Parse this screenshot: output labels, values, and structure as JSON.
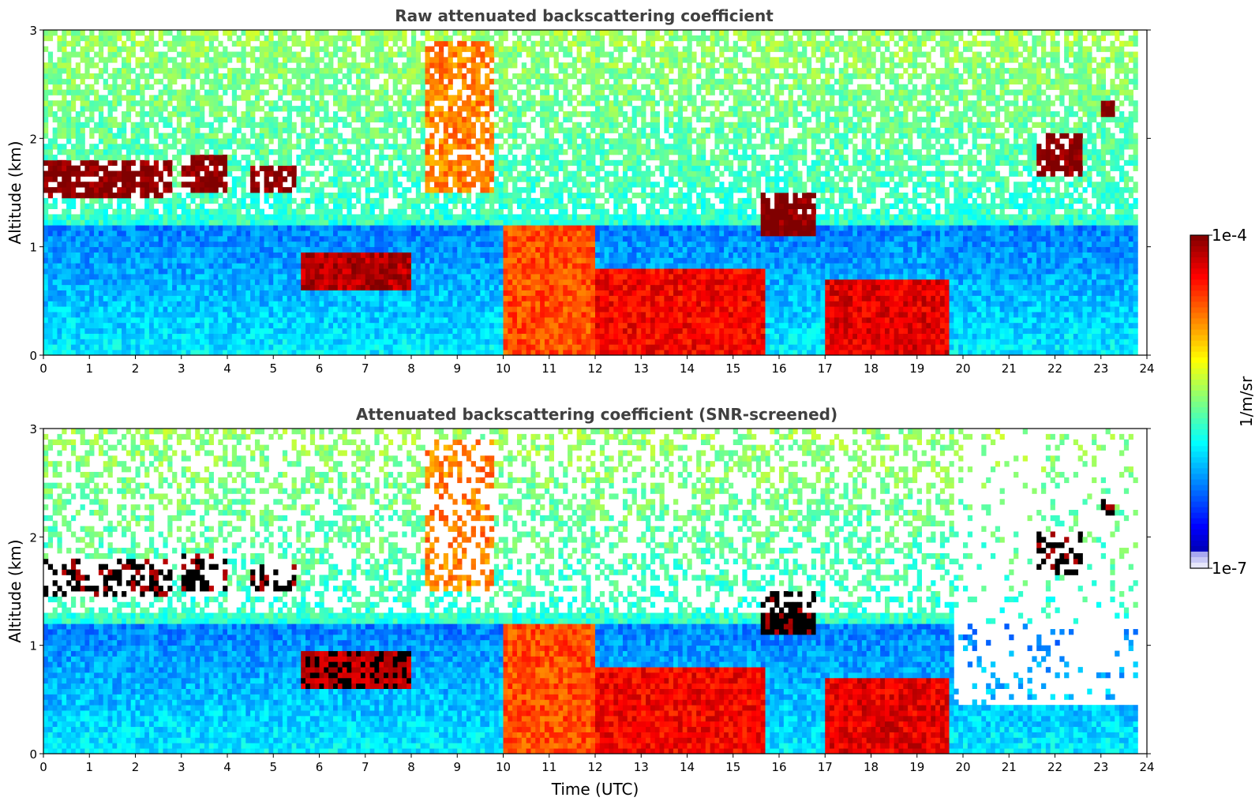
{
  "chart_data": [
    {
      "type": "heatmap",
      "title": "Raw attenuated backscattering coefficient",
      "ylabel": "Altitude (km)",
      "xlabel": "",
      "xlim": [
        0,
        24
      ],
      "ylim": [
        0,
        3
      ],
      "x_ticks": [
        "0",
        "1",
        "2",
        "3",
        "4",
        "5",
        "6",
        "7",
        "8",
        "9",
        "10",
        "11",
        "12",
        "13",
        "14",
        "15",
        "16",
        "17",
        "18",
        "19",
        "20",
        "21",
        "22",
        "23",
        "24"
      ],
      "y_ticks": [
        "0",
        "1",
        "2",
        "3"
      ],
      "screened": false,
      "cloud_layers": [
        {
          "x": [
            0.0,
            2.8
          ],
          "y": [
            1.45,
            1.8
          ],
          "intensity": 1.0
        },
        {
          "x": [
            3.0,
            4.0
          ],
          "y": [
            1.5,
            1.85
          ],
          "intensity": 1.0
        },
        {
          "x": [
            4.5,
            5.5
          ],
          "y": [
            1.5,
            1.75
          ],
          "intensity": 1.0
        },
        {
          "x": [
            5.6,
            8.0
          ],
          "y": [
            0.6,
            0.95
          ],
          "intensity": 0.95
        },
        {
          "x": [
            8.3,
            9.8
          ],
          "y": [
            1.5,
            2.9
          ],
          "intensity": 0.75
        },
        {
          "x": [
            10.0,
            12.0
          ],
          "y": [
            0.0,
            1.2
          ],
          "intensity": 0.8
        },
        {
          "x": [
            12.0,
            15.7
          ],
          "y": [
            0.0,
            0.8
          ],
          "intensity": 0.88
        },
        {
          "x": [
            15.6,
            16.8
          ],
          "y": [
            1.1,
            1.5
          ],
          "intensity": 1.0
        },
        {
          "x": [
            17.0,
            19.7
          ],
          "y": [
            0.0,
            0.7
          ],
          "intensity": 0.9
        },
        {
          "x": [
            21.6,
            22.6
          ],
          "y": [
            1.65,
            2.05
          ],
          "intensity": 1.0
        },
        {
          "x": [
            23.0,
            23.3
          ],
          "y": [
            2.2,
            2.35
          ],
          "intensity": 1.0
        }
      ]
    },
    {
      "type": "heatmap",
      "title": "Attenuated backscattering coefficient (SNR-screened)",
      "ylabel": "Altitude (km)",
      "xlabel": "Time (UTC)",
      "xlim": [
        0,
        24
      ],
      "ylim": [
        0,
        3
      ],
      "x_ticks": [
        "0",
        "1",
        "2",
        "3",
        "4",
        "5",
        "6",
        "7",
        "8",
        "9",
        "10",
        "11",
        "12",
        "13",
        "14",
        "15",
        "16",
        "17",
        "18",
        "19",
        "20",
        "21",
        "22",
        "23",
        "24"
      ],
      "y_ticks": [
        "0",
        "1",
        "2",
        "3"
      ],
      "screened": true
    }
  ],
  "colorbar": {
    "label": "1/m/sr",
    "max_label": "1e-4",
    "min_label": "1e-7",
    "colormap": "jet",
    "under_color": "#ffffff"
  }
}
